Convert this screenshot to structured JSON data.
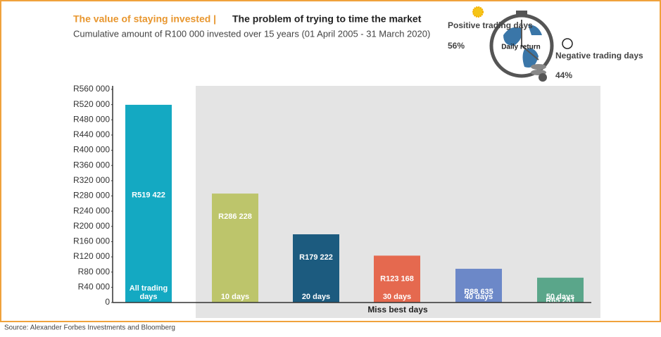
{
  "chart_data": {
    "type": "bar",
    "title_highlight": "The value of staying invested |",
    "title": "The problem of trying to time the market",
    "subtitle": "Cumulative amount of R100 000 invested over 15 years (01 April 2005 - 31 March 2020)",
    "source": "Source: Alexander Forbes Investments and Bloomberg",
    "group_label": "Miss best days",
    "annotations": {
      "positive_label": "Positive trading days",
      "positive_share": "56%",
      "daily_return": "Daily return",
      "negative_label": "Negative trading days",
      "negative_share": "44%"
    },
    "categories": [
      "All trading days",
      "10 days",
      "20 days",
      "30 days",
      "40 days",
      "50 days"
    ],
    "values": [
      519422,
      286228,
      179222,
      123168,
      88635,
      65231
    ],
    "value_labels": [
      "R519 422",
      "R286 228",
      "R179 222",
      "R123 168",
      "R88 635",
      "R65 231"
    ],
    "colors": [
      "#14a9c2",
      "#bdc56b",
      "#1c5b7f",
      "#e5694f",
      "#6c88c8",
      "#5aa68a"
    ],
    "ylim": [
      0,
      560000
    ],
    "yticks": [
      0,
      {
        "value": 40000,
        "label": "R40 000"
      },
      {
        "value": 80000,
        "label": "R80 000"
      },
      {
        "value": 120000,
        "label": "R120 000"
      },
      {
        "value": 160000,
        "label": "R160 000"
      },
      {
        "value": 200000,
        "label": "R200 000"
      },
      {
        "value": 240000,
        "label": "R240 000"
      },
      {
        "value": 280000,
        "label": "R280 000"
      },
      {
        "value": 320000,
        "label": "R320 000"
      },
      {
        "value": 360000,
        "label": "R360 000"
      },
      {
        "value": 400000,
        "label": "R400 000"
      },
      {
        "value": 440000,
        "label": "R440 000"
      },
      {
        "value": 480000,
        "label": "R480 000"
      },
      {
        "value": 520000,
        "label": "R520 000"
      },
      {
        "value": 560000,
        "label": "R560 000"
      }
    ],
    "grid": false
  }
}
